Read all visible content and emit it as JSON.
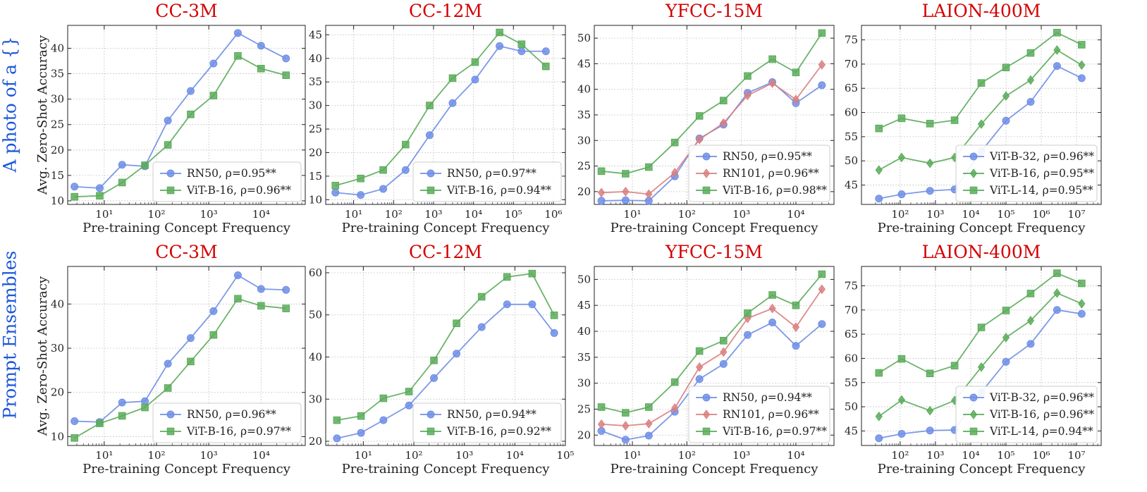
{
  "row_labels": [
    "A photo of a {}",
    "Prompt Ensembles"
  ],
  "ylabel": "Avg. Zero-Shot Accuracy",
  "xlabel": "Pre-training Concept Frequency",
  "colors": {
    "RN50": "#6f8ee6",
    "RN101": "#d9807f",
    "ViT-B-16": "#5aab5a",
    "ViT-B-32": "#6f8ee6",
    "ViT-L-14": "#5aab5a",
    "title": "#d40000",
    "row_label": "#1a56db"
  },
  "chart_data": [
    {
      "type": "line",
      "title": "CC-3M",
      "xscale": "log",
      "xlim": [
        2,
        70000
      ],
      "ylim": [
        9.3,
        44.5
      ],
      "xticks": [
        1,
        2,
        3,
        4
      ],
      "xtick_labels": [
        "10¹",
        "10²",
        "10³",
        "10⁴"
      ],
      "yticks": [
        10,
        15,
        20,
        25,
        30,
        35,
        40
      ],
      "legend_loc": "lower right",
      "x": [
        2.7,
        8.2,
        22,
        60,
        165,
        450,
        1230,
        3600,
        10000,
        30000
      ],
      "series": [
        {
          "name": "RN50",
          "label": "RN50, ρ=0.95**",
          "marker": "circle",
          "values": [
            12.8,
            12.5,
            17.1,
            16.8,
            25.8,
            31.6,
            37.0,
            43.0,
            40.5,
            38.0
          ]
        },
        {
          "name": "ViT-B-16",
          "label": "ViT-B-16, ρ=0.96**",
          "marker": "square",
          "values": [
            10.8,
            11.0,
            13.6,
            17.0,
            21.0,
            27.0,
            30.7,
            38.5,
            36.0,
            34.7
          ]
        }
      ]
    },
    {
      "type": "line",
      "title": "CC-12M",
      "xscale": "log",
      "xlim": [
        2,
        2000000
      ],
      "ylim": [
        9,
        47
      ],
      "xticks": [
        1,
        2,
        3,
        4,
        5,
        6
      ],
      "xtick_labels": [
        "10¹",
        "10²",
        "10³",
        "10⁴",
        "10⁵",
        "10⁶"
      ],
      "yticks": [
        10,
        15,
        20,
        25,
        30,
        35,
        40,
        45
      ],
      "legend_loc": "lower right",
      "x": [
        3.5,
        15,
        55,
        200,
        800,
        3000,
        11000,
        45000,
        160000,
        650000
      ],
      "series": [
        {
          "name": "RN50",
          "label": "RN50, ρ=0.97**",
          "marker": "circle",
          "values": [
            11.5,
            11.0,
            12.3,
            16.3,
            23.7,
            30.5,
            35.5,
            42.6,
            41.5,
            41.5
          ]
        },
        {
          "name": "ViT-B-16",
          "label": "ViT-B-16, ρ=0.94**",
          "marker": "square",
          "values": [
            13.0,
            14.5,
            16.3,
            21.7,
            30.0,
            35.8,
            39.2,
            45.5,
            43.0,
            38.3
          ]
        }
      ]
    },
    {
      "type": "line",
      "title": "YFCC-15M",
      "xscale": "log",
      "xlim": [
        2,
        50000
      ],
      "ylim": [
        17.5,
        52.5
      ],
      "xticks": [
        1,
        2,
        3,
        4
      ],
      "xtick_labels": [
        "10¹",
        "10²",
        "10³",
        "10⁴"
      ],
      "yticks": [
        20,
        25,
        30,
        35,
        40,
        45,
        50
      ],
      "legend_loc": "lower right",
      "x": [
        2.7,
        7.5,
        20,
        60,
        170,
        470,
        1300,
        3700,
        10000,
        30000
      ],
      "series": [
        {
          "name": "RN50",
          "label": "RN50, ρ=0.95**",
          "marker": "circle",
          "values": [
            18.2,
            18.3,
            18.2,
            23.0,
            30.4,
            33.1,
            39.3,
            41.4,
            37.3,
            40.8
          ]
        },
        {
          "name": "RN101",
          "label": "RN101, ρ=0.96**",
          "marker": "diamond",
          "values": [
            19.8,
            20.0,
            19.5,
            23.7,
            30.2,
            33.4,
            38.8,
            41.2,
            38.0,
            44.8
          ]
        },
        {
          "name": "ViT-B-16",
          "label": "ViT-B-16, ρ=0.98**",
          "marker": "square",
          "values": [
            24.0,
            23.5,
            24.8,
            29.6,
            34.8,
            37.8,
            42.6,
            45.9,
            43.3,
            51.0
          ]
        }
      ]
    },
    {
      "type": "line",
      "title": "LAION-400M",
      "xscale": "log",
      "xlim": [
        8,
        50000000
      ],
      "ylim": [
        41,
        78
      ],
      "xticks": [
        2,
        3,
        4,
        5,
        6,
        7
      ],
      "xtick_labels": [
        "10²",
        "10³",
        "10⁴",
        "10⁵",
        "10⁶",
        "10⁷"
      ],
      "yticks": [
        45,
        50,
        55,
        60,
        65,
        70,
        75
      ],
      "legend_loc": "lower right",
      "x": [
        25,
        110,
        700,
        3500,
        20000,
        100000,
        500000,
        2800000,
        14000000
      ],
      "series": [
        {
          "name": "ViT-B-32",
          "label": "ViT-B-32, ρ=0.96**",
          "marker": "circle",
          "values": [
            42.2,
            43.1,
            43.8,
            44.1,
            52.0,
            58.3,
            62.2,
            69.6,
            67.1
          ]
        },
        {
          "name": "ViT-B-16",
          "label": "ViT-B-16, ρ=0.95**",
          "marker": "diamond",
          "values": [
            48.1,
            50.7,
            49.5,
            50.7,
            57.6,
            63.4,
            66.7,
            72.9,
            69.8
          ]
        },
        {
          "name": "ViT-L-14",
          "label": "ViT-L-14, ρ=0.95**",
          "marker": "square",
          "values": [
            56.7,
            58.8,
            57.7,
            58.4,
            66.1,
            69.3,
            72.3,
            76.5,
            74.0
          ]
        }
      ]
    },
    {
      "type": "line",
      "title": "CC-3M",
      "xscale": "log",
      "xlim": [
        2,
        70000
      ],
      "ylim": [
        8,
        48.5
      ],
      "xticks": [
        1,
        2,
        3,
        4
      ],
      "xtick_labels": [
        "10¹",
        "10²",
        "10³",
        "10⁴"
      ],
      "yticks": [
        10,
        20,
        30,
        40
      ],
      "legend_loc": "lower right",
      "x": [
        2.7,
        8.2,
        22,
        60,
        165,
        450,
        1230,
        3600,
        10000,
        30000
      ],
      "series": [
        {
          "name": "RN50",
          "label": "RN50, ρ=0.96**",
          "marker": "circle",
          "values": [
            13.5,
            13.3,
            17.7,
            18.0,
            26.5,
            32.3,
            38.4,
            46.5,
            43.4,
            43.2
          ]
        },
        {
          "name": "ViT-B-16",
          "label": "ViT-B-16, ρ=0.97**",
          "marker": "square",
          "values": [
            9.7,
            13.0,
            14.7,
            16.6,
            21.0,
            27.0,
            33.0,
            41.2,
            39.6,
            39.0
          ]
        }
      ]
    },
    {
      "type": "line",
      "title": "CC-12M",
      "xscale": "log",
      "xlim": [
        1.8,
        100000
      ],
      "ylim": [
        19,
        61.5
      ],
      "xticks": [
        1,
        2,
        3,
        4,
        5
      ],
      "xtick_labels": [
        "10¹",
        "10²",
        "10³",
        "10⁴",
        "10⁵"
      ],
      "yticks": [
        20,
        30,
        40,
        50,
        60
      ],
      "legend_loc": "lower right",
      "x": [
        3,
        9,
        25,
        80,
        250,
        700,
        2200,
        7000,
        22000,
        60000
      ],
      "series": [
        {
          "name": "RN50",
          "label": "RN50, ρ=0.94**",
          "marker": "circle",
          "values": [
            20.7,
            22.0,
            25.0,
            28.5,
            35.0,
            40.8,
            47.1,
            52.5,
            52.5,
            45.7
          ]
        },
        {
          "name": "ViT-B-16",
          "label": "ViT-B-16, ρ=0.92**",
          "marker": "square",
          "values": [
            25.0,
            26.0,
            30.2,
            31.8,
            39.2,
            48.0,
            54.3,
            59.0,
            59.8,
            49.9
          ]
        }
      ]
    },
    {
      "type": "line",
      "title": "YFCC-15M",
      "xscale": "log",
      "xlim": [
        2,
        50000
      ],
      "ylim": [
        18,
        52.5
      ],
      "xticks": [
        1,
        2,
        3,
        4
      ],
      "xtick_labels": [
        "10¹",
        "10²",
        "10³",
        "10⁴"
      ],
      "yticks": [
        20,
        25,
        30,
        35,
        40,
        45,
        50
      ],
      "legend_loc": "lower right",
      "x": [
        2.7,
        7.5,
        20,
        60,
        170,
        470,
        1300,
        3700,
        10000,
        30000
      ],
      "series": [
        {
          "name": "RN50",
          "label": "RN50, ρ=0.94**",
          "marker": "circle",
          "values": [
            20.8,
            19.1,
            19.9,
            24.5,
            30.8,
            33.7,
            39.3,
            41.7,
            37.2,
            41.4
          ]
        },
        {
          "name": "RN101",
          "label": "RN101, ρ=0.96**",
          "marker": "diamond",
          "values": [
            22.1,
            21.8,
            22.2,
            25.2,
            33.1,
            36.0,
            42.5,
            44.4,
            40.8,
            48.1
          ]
        },
        {
          "name": "ViT-B-16",
          "label": "ViT-B-16, ρ=0.97**",
          "marker": "square",
          "values": [
            25.4,
            24.3,
            25.4,
            30.2,
            36.2,
            38.2,
            43.5,
            47.0,
            45.0,
            51.0
          ]
        }
      ]
    },
    {
      "type": "line",
      "title": "LAION-400M",
      "xscale": "log",
      "xlim": [
        8,
        50000000
      ],
      "ylim": [
        42,
        79
      ],
      "xticks": [
        2,
        3,
        4,
        5,
        6,
        7
      ],
      "xtick_labels": [
        "10²",
        "10³",
        "10⁴",
        "10⁵",
        "10⁶",
        "10⁷"
      ],
      "yticks": [
        45,
        50,
        55,
        60,
        65,
        70,
        75
      ],
      "legend_loc": "lower right",
      "x": [
        25,
        110,
        700,
        3500,
        20000,
        100000,
        500000,
        2800000,
        14000000
      ],
      "series": [
        {
          "name": "ViT-B-32",
          "label": "ViT-B-32, ρ=0.96**",
          "marker": "circle",
          "values": [
            43.5,
            44.4,
            45.1,
            45.2,
            53.0,
            59.3,
            63.0,
            70.0,
            69.2
          ]
        },
        {
          "name": "ViT-B-16",
          "label": "ViT-B-16, ρ=0.96**",
          "marker": "diamond",
          "values": [
            48.0,
            51.4,
            49.2,
            51.3,
            58.2,
            64.3,
            67.8,
            73.5,
            71.3
          ]
        },
        {
          "name": "ViT-L-14",
          "label": "ViT-L-14, ρ=0.94**",
          "marker": "square",
          "values": [
            57.0,
            59.9,
            56.9,
            58.5,
            66.4,
            69.9,
            73.4,
            77.6,
            75.5
          ]
        }
      ]
    }
  ]
}
